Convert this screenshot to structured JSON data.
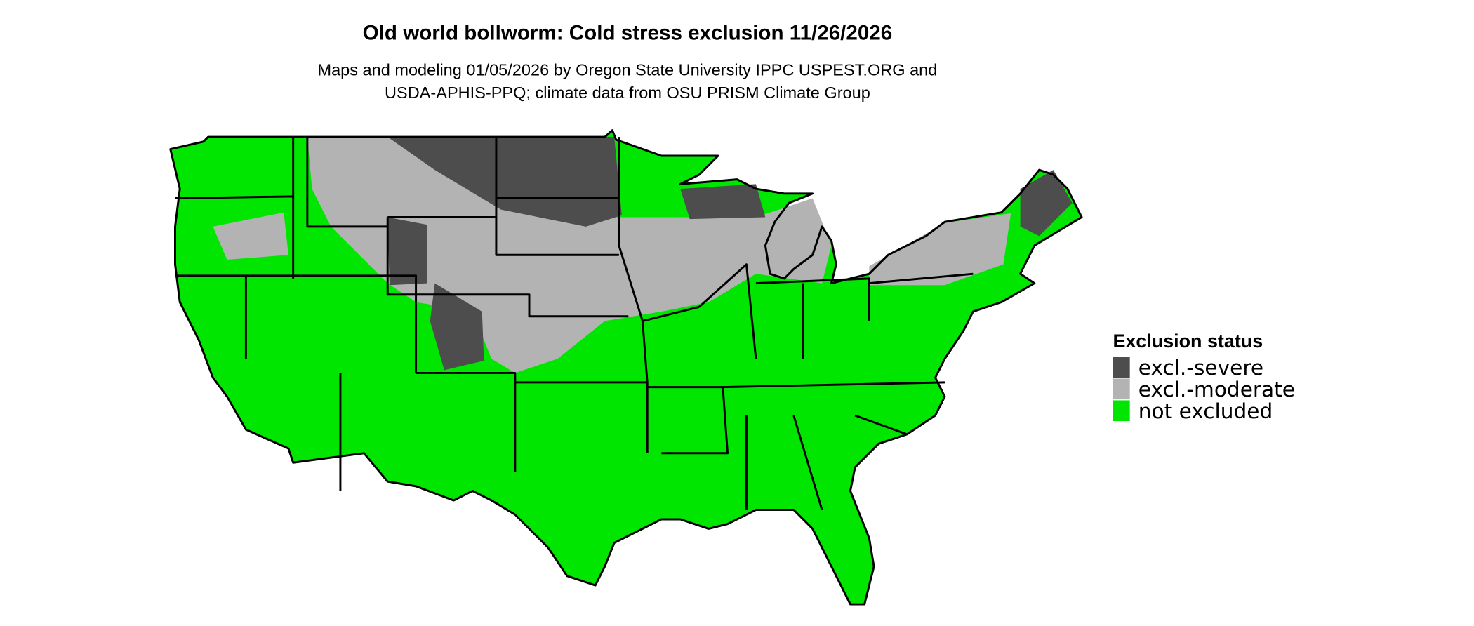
{
  "header": {
    "title": "Old world bollworm: Cold stress exclusion 11/26/2026",
    "subtitle": [
      "Maps and modeling 01/05/2026 by Oregon State University IPPC USPEST.ORG and",
      "USDA-APHIS-PPQ; climate data from OSU PRISM Climate Group"
    ]
  },
  "legend": {
    "title": "Exclusion status",
    "items": [
      {
        "label": "excl.-severe",
        "color": "#4d4d4d"
      },
      {
        "label": "excl.-moderate",
        "color": "#b3b3b3"
      },
      {
        "label": "not excluded",
        "color": "#00e600"
      }
    ]
  }
}
